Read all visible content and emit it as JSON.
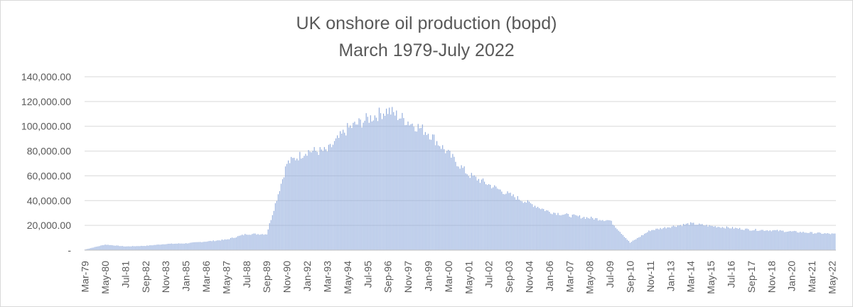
{
  "chart_data": {
    "type": "bar",
    "title": "UK onshore oil production (bopd)",
    "subtitle": "March 1979-July 2022",
    "xlabel": "",
    "ylabel": "",
    "ylim": [
      0,
      140000
    ],
    "grid": true,
    "legend": "none",
    "bar_color": "#8faadc",
    "y_tick_labels": [
      "-",
      "20,000.00",
      "40,000.00",
      "60,000.00",
      "80,000.00",
      "100,000.00",
      "120,000.00",
      "140,000.00"
    ],
    "x_tick_labels": [
      "Mar-79",
      "May-80",
      "Jul-81",
      "Sep-82",
      "Nov-83",
      "Jan-85",
      "Mar-86",
      "May-87",
      "Jul-88",
      "Sep-89",
      "Nov-90",
      "Jan-92",
      "Mar-93",
      "May-94",
      "Jul-95",
      "Sep-96",
      "Nov-97",
      "Jan-99",
      "Mar-00",
      "May-01",
      "Jul-02",
      "Sep-03",
      "Nov-04",
      "Jan-06",
      "Mar-07",
      "May-08",
      "Jul-09",
      "Sep-10",
      "Nov-11",
      "Jan-13",
      "Mar-14",
      "May-15",
      "Jul-16",
      "Sep-17",
      "Nov-18",
      "Jan-20",
      "Mar-21",
      "May-22"
    ],
    "start_month": "Mar-79",
    "end_month": "Jul-22",
    "series": [
      {
        "values_by_period": [
          {
            "period": "Mar-79",
            "value": 500
          },
          {
            "period": "May-80",
            "value": 4500
          },
          {
            "period": "Jul-81",
            "value": 3000
          },
          {
            "period": "Sep-82",
            "value": 3500
          },
          {
            "period": "Nov-83",
            "value": 5000
          },
          {
            "period": "Jan-85",
            "value": 5500
          },
          {
            "period": "Mar-86",
            "value": 7000
          },
          {
            "period": "May-87",
            "value": 8500
          },
          {
            "period": "Jul-88",
            "value": 13000
          },
          {
            "period": "Sep-89",
            "value": 13000
          },
          {
            "period": "Nov-90",
            "value": 70000
          },
          {
            "period": "Jan-92",
            "value": 80000
          },
          {
            "period": "Mar-93",
            "value": 80000
          },
          {
            "period": "May-94",
            "value": 98000
          },
          {
            "period": "Jul-95",
            "value": 106000
          },
          {
            "period": "Sep-96",
            "value": 113000
          },
          {
            "period": "Nov-97",
            "value": 104000
          },
          {
            "period": "Jan-99",
            "value": 95000
          },
          {
            "period": "Mar-00",
            "value": 78000
          },
          {
            "period": "May-01",
            "value": 61000
          },
          {
            "period": "Jul-02",
            "value": 53000
          },
          {
            "period": "Sep-03",
            "value": 45000
          },
          {
            "period": "Nov-04",
            "value": 38000
          },
          {
            "period": "Jan-06",
            "value": 31000
          },
          {
            "period": "Mar-07",
            "value": 28000
          },
          {
            "period": "May-08",
            "value": 26000
          },
          {
            "period": "Jul-09",
            "value": 24000
          },
          {
            "period": "Sep-10",
            "value": 6000
          },
          {
            "period": "Nov-11",
            "value": 16000
          },
          {
            "period": "Jan-13",
            "value": 19000
          },
          {
            "period": "Mar-14",
            "value": 21500
          },
          {
            "period": "May-15",
            "value": 19500
          },
          {
            "period": "Jul-16",
            "value": 18000
          },
          {
            "period": "Sep-17",
            "value": 16500
          },
          {
            "period": "Nov-18",
            "value": 16000
          },
          {
            "period": "Jan-20",
            "value": 15000
          },
          {
            "period": "Mar-21",
            "value": 14000
          },
          {
            "period": "Jul-22",
            "value": 13000
          }
        ]
      }
    ]
  }
}
